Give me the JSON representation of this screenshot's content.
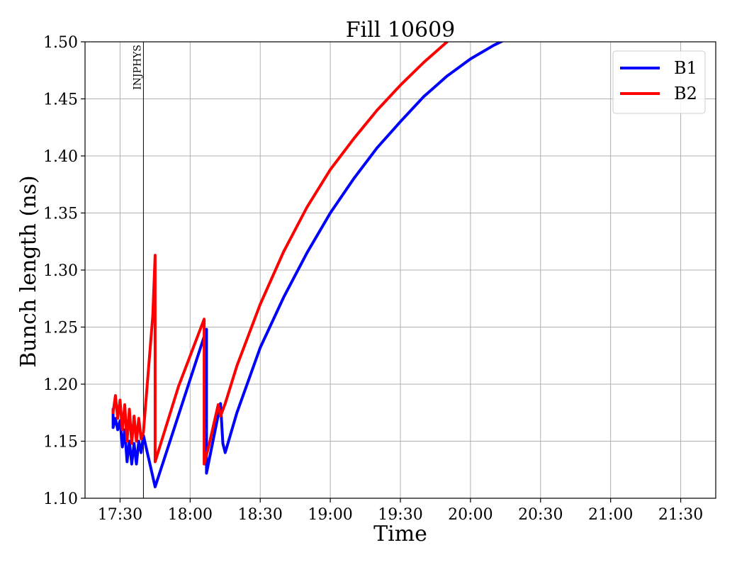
{
  "chart_data": {
    "type": "line",
    "title": "Fill 10609",
    "xlabel": "Time",
    "ylabel": "Bunch length (ns)",
    "xlim": [
      "17:15",
      "21:45"
    ],
    "ylim": [
      1.1,
      1.5
    ],
    "xticks": [
      "17:30",
      "18:00",
      "18:30",
      "19:00",
      "19:30",
      "20:00",
      "20:30",
      "21:00",
      "21:30"
    ],
    "yticks": [
      "1.10",
      "1.15",
      "1.20",
      "1.25",
      "1.30",
      "1.35",
      "1.40",
      "1.45",
      "1.50"
    ],
    "grid": true,
    "legend": "top-right",
    "markers": [
      {
        "label": "INJPHYS",
        "x": "17:40"
      }
    ],
    "series": [
      {
        "name": "B1",
        "color": "#0000ff",
        "points": [
          [
            "17:27",
            1.178
          ],
          [
            "17:27",
            1.162
          ],
          [
            "17:28",
            1.17
          ],
          [
            "17:29",
            1.16
          ],
          [
            "17:30",
            1.168
          ],
          [
            "17:31",
            1.145
          ],
          [
            "17:32",
            1.16
          ],
          [
            "17:33",
            1.132
          ],
          [
            "17:34",
            1.15
          ],
          [
            "17:35",
            1.13
          ],
          [
            "17:36",
            1.148
          ],
          [
            "17:37",
            1.13
          ],
          [
            "17:38",
            1.15
          ],
          [
            "17:39",
            1.14
          ],
          [
            "17:40",
            1.155
          ],
          [
            "17:45",
            1.11
          ],
          [
            "18:07",
            1.248
          ],
          [
            "18:07",
            1.122
          ],
          [
            "18:13",
            1.183
          ],
          [
            "18:14",
            1.148
          ],
          [
            "18:15",
            1.14
          ],
          [
            "18:20",
            1.175
          ],
          [
            "18:30",
            1.232
          ],
          [
            "18:40",
            1.276
          ],
          [
            "18:50",
            1.315
          ],
          [
            "19:00",
            1.35
          ],
          [
            "19:10",
            1.38
          ],
          [
            "19:20",
            1.407
          ],
          [
            "19:30",
            1.43
          ],
          [
            "19:40",
            1.452
          ],
          [
            "19:50",
            1.47
          ],
          [
            "20:00",
            1.485
          ],
          [
            "20:10",
            1.497
          ],
          [
            "20:15",
            1.502
          ]
        ]
      },
      {
        "name": "B2",
        "color": "#ff0000",
        "points": [
          [
            "17:27",
            1.175
          ],
          [
            "17:28",
            1.19
          ],
          [
            "17:29",
            1.17
          ],
          [
            "17:30",
            1.186
          ],
          [
            "17:31",
            1.16
          ],
          [
            "17:32",
            1.182
          ],
          [
            "17:33",
            1.15
          ],
          [
            "17:34",
            1.178
          ],
          [
            "17:35",
            1.148
          ],
          [
            "17:36",
            1.172
          ],
          [
            "17:37",
            1.15
          ],
          [
            "17:38",
            1.17
          ],
          [
            "17:39",
            1.152
          ],
          [
            "17:40",
            1.158
          ],
          [
            "17:44",
            1.26
          ],
          [
            "17:45",
            1.313
          ],
          [
            "17:45",
            1.132
          ],
          [
            "17:55",
            1.198
          ],
          [
            "18:06",
            1.257
          ],
          [
            "18:06",
            1.13
          ],
          [
            "18:08",
            1.146
          ],
          [
            "18:12",
            1.182
          ],
          [
            "18:13",
            1.172
          ],
          [
            "18:15",
            1.183
          ],
          [
            "18:20",
            1.216
          ],
          [
            "18:30",
            1.27
          ],
          [
            "18:40",
            1.316
          ],
          [
            "18:50",
            1.355
          ],
          [
            "19:00",
            1.388
          ],
          [
            "19:10",
            1.415
          ],
          [
            "19:20",
            1.44
          ],
          [
            "19:30",
            1.462
          ],
          [
            "19:40",
            1.482
          ],
          [
            "19:50",
            1.5
          ]
        ]
      }
    ]
  }
}
